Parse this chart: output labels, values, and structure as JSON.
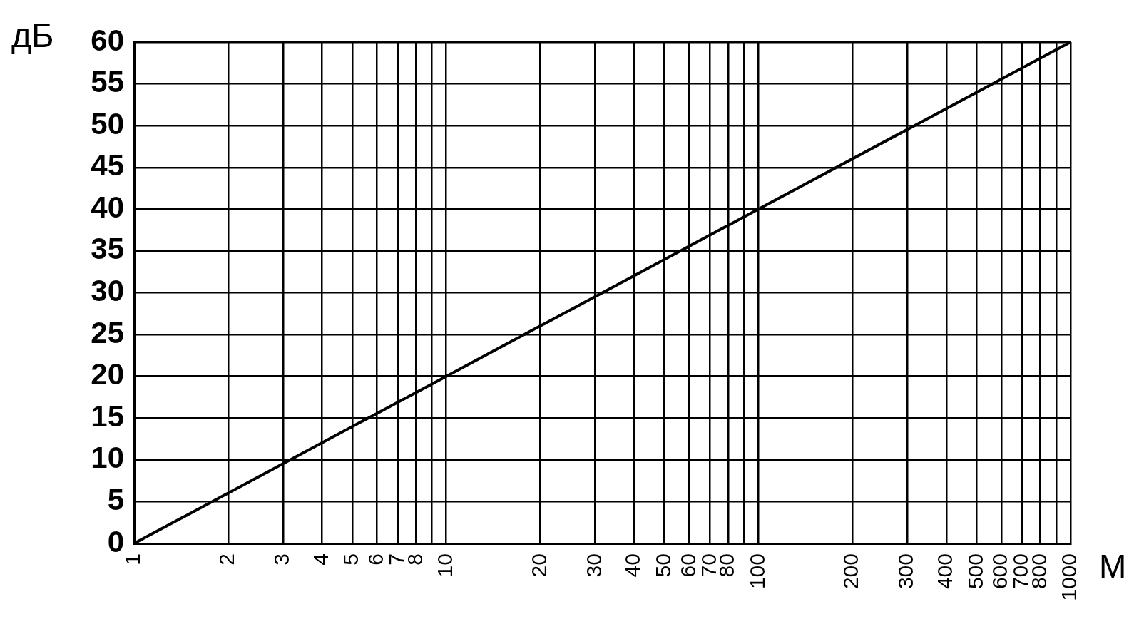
{
  "chart_data": {
    "type": "line",
    "xlabel": "М",
    "ylabel": "дБ",
    "x": [
      1,
      10,
      100,
      1000
    ],
    "series": [
      {
        "color": "#000000",
        "values": [
          0,
          20,
          40,
          60
        ]
      }
    ],
    "log": "x",
    "xlim": [
      1,
      1000
    ],
    "xticks": [
      1,
      2,
      3,
      4,
      5,
      6,
      7,
      8,
      {
        "value": 9,
        "label": null
      },
      10,
      20,
      30,
      40,
      50,
      60,
      70,
      80,
      {
        "value": 90,
        "label": null
      },
      100,
      200,
      300,
      400,
      500,
      600,
      700,
      800,
      {
        "value": 900,
        "label": null
      },
      1000
    ],
    "ylim": [
      0,
      60
    ],
    "yticks": [
      0,
      5,
      10,
      15,
      20,
      25,
      30,
      35,
      40,
      45,
      50,
      55,
      60
    ],
    "grid": true,
    "marker": "none",
    "line_style": "solid"
  }
}
